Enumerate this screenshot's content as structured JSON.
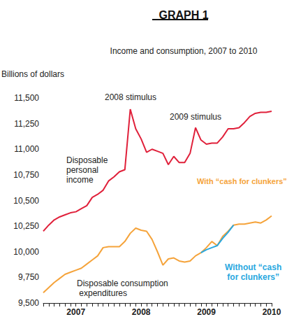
{
  "chart_data": {
    "type": "line",
    "title": "GRAPH 1",
    "subtitle": "Income and consumption, 2007 to 2010",
    "y_label": "Billions of dollars",
    "categories": [
      null,
      null,
      null,
      null,
      null,
      null,
      "2007",
      null,
      null,
      null,
      null,
      null,
      null,
      null,
      null,
      null,
      null,
      null,
      "2008",
      null,
      null,
      null,
      null,
      null,
      null,
      null,
      null,
      null,
      null,
      null,
      "2009",
      null,
      null,
      null,
      null,
      null,
      null,
      null,
      null,
      null,
      null,
      null,
      "2010"
    ],
    "series": [
      {
        "name": "Disposable personal income",
        "color": "#e0203a",
        "values": [
          10200,
          10260,
          10310,
          10340,
          10360,
          10380,
          10390,
          10420,
          10450,
          10530,
          10560,
          10600,
          10690,
          10730,
          10780,
          10800,
          11390,
          11200,
          11100,
          10970,
          11000,
          10980,
          10960,
          10850,
          10930,
          10870,
          10870,
          10960,
          11210,
          11090,
          11050,
          11060,
          11060,
          11120,
          11200,
          11200,
          11210,
          11260,
          11320,
          11350,
          11360,
          11360,
          11370
        ]
      },
      {
        "name": "Disposable consumption expenditures",
        "color": "#f5a33a",
        "values": [
          9600,
          9650,
          9700,
          9740,
          9780,
          9800,
          9820,
          9840,
          9880,
          9920,
          9960,
          10040,
          10050,
          10050,
          10050,
          10100,
          10180,
          10230,
          10210,
          10200,
          10120,
          10000,
          9870,
          9930,
          9940,
          9910,
          9900,
          9910,
          9960,
          9990,
          10040,
          10100,
          10060,
          10150,
          10200,
          10260,
          10270,
          10270,
          10280,
          10290,
          10280,
          10310,
          10350
        ]
      },
      {
        "name": "Without “cash for clunkers”",
        "color": "#29a8e0",
        "values": [
          null,
          null,
          null,
          null,
          null,
          null,
          null,
          null,
          null,
          null,
          null,
          null,
          null,
          null,
          null,
          null,
          null,
          null,
          null,
          null,
          null,
          null,
          null,
          null,
          null,
          null,
          null,
          null,
          null,
          9990,
          10020,
          10040,
          10060,
          10130,
          10190,
          10260,
          null,
          null,
          null,
          null,
          null,
          null,
          null
        ]
      }
    ],
    "annotations": [
      {
        "text": "2008 stimulus"
      },
      {
        "text": "2009 stimulus"
      },
      {
        "text": "With “cash for clunkers”",
        "color": "#f5a33a"
      }
    ],
    "ylim": [
      9500,
      11500
    ],
    "yticks": [
      {
        "value": 9500,
        "label": "9,500"
      },
      {
        "value": 9750,
        "label": "9,750"
      },
      {
        "value": 10000,
        "label": "10,000"
      },
      {
        "value": 10250,
        "label": "10,250"
      },
      {
        "value": 10500,
        "label": "10,500"
      },
      {
        "value": 10750,
        "label": "10,750"
      },
      {
        "value": 11000,
        "label": "11,000"
      },
      {
        "value": 11250,
        "label": "11,250"
      },
      {
        "value": 11500,
        "label": "11,500"
      }
    ],
    "grid": false
  }
}
